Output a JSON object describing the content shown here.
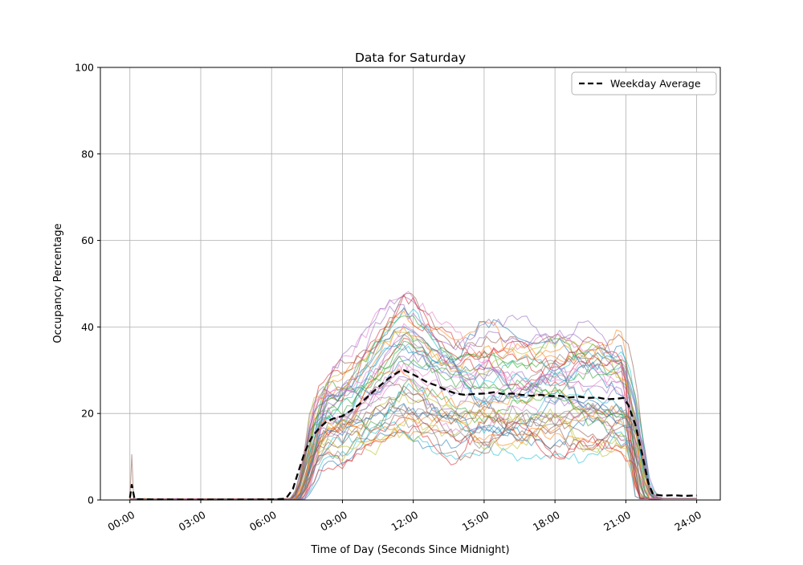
{
  "figure": {
    "background": "#ffffff",
    "text_color": "#000000"
  },
  "chart_data": {
    "type": "line",
    "title": "Data for Saturday",
    "xlabel": "Time of Day (Seconds Since Midnight)",
    "ylabel": "Occupancy Percentage",
    "grid": true,
    "grid_color": "#b0b0b0",
    "xlim_hours": [
      -1.25,
      25.0
    ],
    "ylim": [
      0,
      100
    ],
    "x_ticks": [
      {
        "hours": 0,
        "seconds": 0,
        "label": "00:00"
      },
      {
        "hours": 3,
        "seconds": 10800,
        "label": "03:00"
      },
      {
        "hours": 6,
        "seconds": 21600,
        "label": "06:00"
      },
      {
        "hours": 9,
        "seconds": 32400,
        "label": "09:00"
      },
      {
        "hours": 12,
        "seconds": 43200,
        "label": "12:00"
      },
      {
        "hours": 15,
        "seconds": 54000,
        "label": "15:00"
      },
      {
        "hours": 18,
        "seconds": 64800,
        "label": "18:00"
      },
      {
        "hours": 21,
        "seconds": 75600,
        "label": "21:00"
      },
      {
        "hours": 24,
        "seconds": 86400,
        "label": "24:00"
      }
    ],
    "y_ticks": [
      0,
      20,
      40,
      60,
      80,
      100
    ],
    "legend": {
      "label": "Weekday Average",
      "position": "upper right",
      "line_style": "dashed",
      "color": "#000000",
      "border_color": "#b3b3b3"
    },
    "average_series": {
      "name": "Weekday Average",
      "style": "dashed",
      "color": "#000000",
      "stroke_width": 2.3,
      "points": [
        [
          0,
          0.5
        ],
        [
          0.08,
          3.5
        ],
        [
          0.2,
          0.2
        ],
        [
          1,
          0.12
        ],
        [
          2,
          0.1
        ],
        [
          3,
          0.1
        ],
        [
          4,
          0.1
        ],
        [
          5,
          0.1
        ],
        [
          6,
          0.12
        ],
        [
          6.6,
          0.3
        ],
        [
          6.9,
          2.5
        ],
        [
          7.1,
          6
        ],
        [
          7.4,
          11
        ],
        [
          7.7,
          14.5
        ],
        [
          8,
          16.5
        ],
        [
          8.3,
          18
        ],
        [
          8.6,
          18.8
        ],
        [
          9,
          19.4
        ],
        [
          9.4,
          20.8
        ],
        [
          9.8,
          22.5
        ],
        [
          10.2,
          24.5
        ],
        [
          10.6,
          26.5
        ],
        [
          11,
          28.3
        ],
        [
          11.4,
          29.7
        ],
        [
          11.6,
          30
        ],
        [
          11.9,
          29.3
        ],
        [
          12.2,
          28.4
        ],
        [
          12.6,
          27.2
        ],
        [
          13,
          26.4
        ],
        [
          13.4,
          25.4
        ],
        [
          13.8,
          24.6
        ],
        [
          14.2,
          24.3
        ],
        [
          14.6,
          24.5
        ],
        [
          15,
          24.6
        ],
        [
          15.4,
          24.9
        ],
        [
          15.8,
          24.5
        ],
        [
          16.2,
          24.6
        ],
        [
          16.6,
          24.3
        ],
        [
          17,
          24.1
        ],
        [
          17.4,
          24.3
        ],
        [
          17.8,
          24
        ],
        [
          18.2,
          24.1
        ],
        [
          18.6,
          23.7
        ],
        [
          19,
          23.9
        ],
        [
          19.4,
          23.6
        ],
        [
          19.8,
          23.7
        ],
        [
          20.2,
          23.3
        ],
        [
          20.6,
          23.4
        ],
        [
          20.9,
          23.6
        ],
        [
          21.1,
          22
        ],
        [
          21.4,
          17.5
        ],
        [
          21.7,
          10.5
        ],
        [
          21.95,
          4
        ],
        [
          22.15,
          1.3
        ],
        [
          22.6,
          1
        ],
        [
          23,
          1.1
        ],
        [
          23.5,
          0.95
        ],
        [
          24,
          1.05
        ]
      ]
    },
    "individual_series": {
      "description": "Individual Saturday occupancy traces, flat at 0% overnight, active ~07:00-22:00, midday peaks 10-50%",
      "count": 48,
      "alpha": 0.55,
      "stroke_width": 1.1,
      "value_scale_range": [
        0.55,
        1.55
      ],
      "start_hour_range": [
        6.5,
        7.3
      ],
      "end_hour_range": [
        20.8,
        21.9
      ],
      "noise_amplitude": 5.5,
      "max_value": 51,
      "startup_spike": {
        "line_index": 5,
        "hour": 0.08,
        "value": 10.5
      },
      "colors": [
        "#1f77b4",
        "#ff7f0e",
        "#2ca02c",
        "#d62728",
        "#9467bd",
        "#8c564b",
        "#e377c2",
        "#7f7f7f",
        "#bcbd22",
        "#17becf"
      ]
    }
  }
}
